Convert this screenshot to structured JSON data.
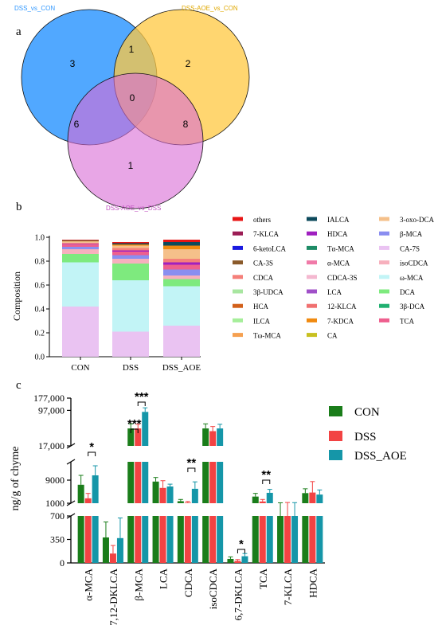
{
  "colors": {
    "con": "#1a7d1a",
    "dss": "#f24343",
    "dss_aoe": "#1596a8",
    "venn_a": "#3399ff",
    "venn_b": "#ffc840",
    "venn_c": "#d96ad6"
  },
  "panels": {
    "a": "a",
    "b": "b",
    "c": "c"
  },
  "chart_data": [
    {
      "type": "venn",
      "sets": [
        "DSS_vs_CON",
        "DSS-AOE_vs_CON",
        "DSS-AOE_vs_DSS"
      ],
      "regions": {
        "a_only": "3",
        "ab": "1",
        "b_only": "2",
        "abc": "0",
        "ac": "6",
        "bc": "8",
        "c_only": "1"
      }
    },
    {
      "type": "bar",
      "stacked": true,
      "ylabel": "Composition",
      "ylim": [
        0,
        1.0
      ],
      "yticks": [
        "0.0",
        "0.2",
        "0.4",
        "0.6",
        "0.8",
        "1.0"
      ],
      "categories": [
        "CON",
        "DSS",
        "DSS_AOE"
      ],
      "series": [
        {
          "name": "CA-7S",
          "color": "#eac3f2",
          "values": [
            0.42,
            0.21,
            0.26
          ]
        },
        {
          "name": "ω-MCA",
          "color": "#c2f4f6",
          "values": [
            0.37,
            0.43,
            0.33
          ]
        },
        {
          "name": "DCA",
          "color": "#7eea7e",
          "values": [
            0.07,
            0.14,
            0.06
          ]
        },
        {
          "name": "isoCDCA",
          "color": "#f7b0bd",
          "values": [
            0.04,
            0.04,
            0.03
          ]
        },
        {
          "name": "β-MCA",
          "color": "#8a8ef0",
          "values": [
            0.02,
            0.03,
            0.05
          ]
        },
        {
          "name": "TCA",
          "color": "#ee5f8e",
          "values": [
            0.02,
            0.03,
            0.04
          ]
        },
        {
          "name": "HDCA",
          "color": "#a020c0",
          "values": [
            0.005,
            0.01,
            0.02
          ]
        },
        {
          "name": "CDCA",
          "color": "#f5807a",
          "values": [
            0.01,
            0.02,
            0.03
          ]
        },
        {
          "name": "3-oxo-DCA",
          "color": "#f5c08a",
          "values": [
            0.01,
            0.02,
            0.08
          ]
        },
        {
          "name": "7-KDCA",
          "color": "#f08a10",
          "values": [
            0.005,
            0.01,
            0.03
          ]
        },
        {
          "name": "IALCA",
          "color": "#0d4a5c",
          "values": [
            0.005,
            0.01,
            0.03
          ]
        },
        {
          "name": "others",
          "color": "#e81515",
          "values": [
            0.005,
            0.01,
            0.02
          ]
        }
      ],
      "legend": [
        {
          "name": "others",
          "color": "#e81515"
        },
        {
          "name": "IALCA",
          "color": "#0d4a5c"
        },
        {
          "name": "3-oxo-DCA",
          "color": "#f5c08a"
        },
        {
          "name": "7-KLCA",
          "color": "#9c1d55"
        },
        {
          "name": "HDCA",
          "color": "#a020c0"
        },
        {
          "name": "β-MCA",
          "color": "#8a8ef0"
        },
        {
          "name": "6-ketoLCA",
          "color": "#1a1ae0"
        },
        {
          "name": "Tα-MCA",
          "color": "#1e8c66"
        },
        {
          "name": "CA-7S",
          "color": "#eac3f2"
        },
        {
          "name": "CA-3S",
          "color": "#8a5a2a"
        },
        {
          "name": "α-MCA",
          "color": "#f07aa8"
        },
        {
          "name": "isoCDCA",
          "color": "#f7b0bd"
        },
        {
          "name": "CDCA",
          "color": "#f5807a"
        },
        {
          "name": "CDCA-3S",
          "color": "#f4b8d0"
        },
        {
          "name": "ω-MCA",
          "color": "#c2f4f6"
        },
        {
          "name": "3β-UDCA",
          "color": "#a8e6a0"
        },
        {
          "name": "LCA",
          "color": "#a050c8"
        },
        {
          "name": "DCA",
          "color": "#7eea7e"
        },
        {
          "name": "HCA",
          "color": "#d2601a"
        },
        {
          "name": "12-KLCA",
          "color": "#f07070"
        },
        {
          "name": "3β-DCA",
          "color": "#20b070"
        },
        {
          "name": "ILCA",
          "color": "#a6ee9a"
        },
        {
          "name": "7-KDCA",
          "color": "#f08a10"
        },
        {
          "name": "TCA",
          "color": "#ee5f8e"
        },
        {
          "name": "Tω-MCA",
          "color": "#f5a050"
        },
        {
          "name": "CA",
          "color": "#c8c020"
        }
      ]
    },
    {
      "type": "bar",
      "ylabel": "ng/g of chyme",
      "broken_axis": true,
      "yticks_top": [
        "177,000",
        "97,000",
        "17,000"
      ],
      "yticks_mid": [
        "9000",
        "1000"
      ],
      "yticks_low": [
        "700",
        "350",
        "0"
      ],
      "categories": [
        "α-MCA",
        "7,12-DKLCA",
        "β-MCA",
        "LCA",
        "CDCA",
        "isoCDCA",
        "6,7-DKLCA",
        "TCA",
        "7-KLCA",
        "HDCA"
      ],
      "series": [
        {
          "name": "CON",
          "values": [
            7400,
            380,
            40000,
            8500,
            1700,
            40000,
            60,
            3300,
            900,
            4500
          ],
          "errors": [
            3600,
            230,
            10000,
            1600,
            600,
            10000,
            30,
            1100,
            250,
            1500
          ]
        },
        {
          "name": "DSS",
          "values": [
            2700,
            140,
            40000,
            6300,
            1200,
            35000,
            30,
            1600,
            950,
            4700
          ],
          "errors": [
            1700,
            120,
            9000,
            2500,
            400,
            9000,
            20,
            700,
            300,
            3800
          ]
        },
        {
          "name": "DSS_AOE",
          "values": [
            11000,
            370,
            90000,
            6800,
            6000,
            40000,
            100,
            4600,
            950,
            4000
          ],
          "errors": [
            4000,
            300,
            20000,
            800,
            2400,
            9000,
            40,
            1200,
            250,
            1600
          ]
        }
      ],
      "significance": [
        {
          "category": "α-MCA",
          "label": "*"
        },
        {
          "category": "β-MCA",
          "label": "***"
        },
        {
          "category": "β-MCA",
          "label": "***"
        },
        {
          "category": "CDCA",
          "label": "**"
        },
        {
          "category": "6,7-DKLCA",
          "label": "*"
        },
        {
          "category": "TCA",
          "label": "**"
        }
      ]
    }
  ]
}
